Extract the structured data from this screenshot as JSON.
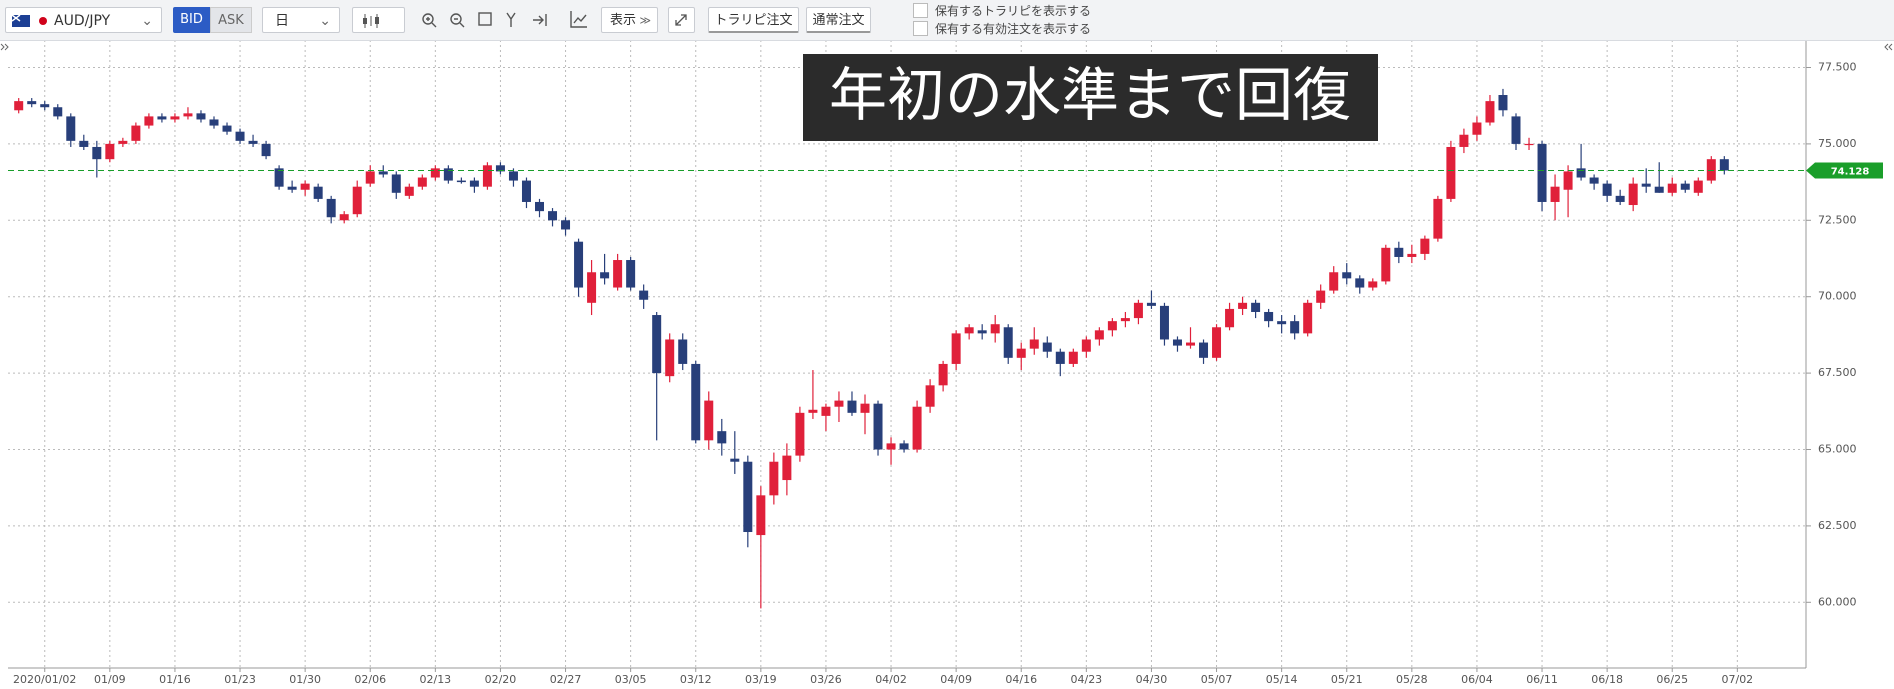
{
  "toolbar": {
    "symbol": "AUD/JPY",
    "bid": "BID",
    "ask": "ASK",
    "period": "日",
    "display": "表示",
    "trap_repeat_order": "トラリピ注文",
    "normal_order": "通常注文",
    "checkboxes": [
      "保有するトラリピを表示する",
      "保有する有効注文を表示する"
    ]
  },
  "chart_data": {
    "type": "candlestick",
    "annotation": "年初の水準まで回復",
    "categories": [
      null,
      null,
      "2020/01/02",
      null,
      null,
      null,
      null,
      "01/09",
      null,
      null,
      null,
      null,
      "01/16",
      null,
      null,
      null,
      null,
      "01/23",
      null,
      null,
      null,
      null,
      "01/30",
      null,
      null,
      null,
      null,
      "02/06",
      null,
      null,
      null,
      null,
      "02/13",
      null,
      null,
      null,
      null,
      "02/20",
      null,
      null,
      null,
      null,
      "02/27",
      null,
      null,
      null,
      null,
      "03/05",
      null,
      null,
      null,
      null,
      "03/12",
      null,
      null,
      null,
      null,
      "03/19",
      null,
      null,
      null,
      null,
      "03/26",
      null,
      null,
      null,
      null,
      "04/02",
      null,
      null,
      null,
      null,
      "04/09",
      null,
      null,
      null,
      null,
      "04/16",
      null,
      null,
      null,
      null,
      "04/23",
      null,
      null,
      null,
      null,
      "04/30",
      null,
      null,
      null,
      null,
      "05/07",
      null,
      null,
      null,
      null,
      "05/14",
      null,
      null,
      null,
      null,
      "05/21",
      null,
      null,
      null,
      null,
      "05/28",
      null,
      null,
      null,
      null,
      "06/04",
      null,
      null,
      null,
      null,
      "06/11",
      null,
      null,
      null,
      null,
      "06/18",
      null,
      null,
      null,
      null,
      "06/25",
      null,
      null,
      null,
      null,
      "07/02"
    ],
    "open": [
      76.1,
      76.4,
      76.3,
      76.2,
      75.9,
      75.1,
      74.9,
      74.5,
      75.0,
      75.1,
      75.6,
      75.9,
      75.8,
      75.9,
      76.0,
      75.8,
      75.6,
      75.4,
      75.1,
      75.0,
      74.2,
      73.6,
      73.5,
      73.6,
      73.2,
      72.5,
      72.7,
      73.7,
      74.1,
      74.0,
      73.3,
      73.6,
      73.9,
      74.2,
      73.8,
      73.8,
      73.6,
      74.3,
      74.1,
      73.8,
      73.1,
      72.8,
      72.5,
      71.8,
      69.8,
      70.8,
      70.3,
      71.2,
      70.2,
      69.4,
      67.4,
      68.6,
      67.8,
      65.3,
      65.6,
      64.7,
      64.6,
      62.2,
      63.5,
      64.0,
      64.8,
      66.2,
      66.1,
      66.4,
      66.6,
      66.2,
      66.5,
      65.0,
      65.2,
      65.0,
      66.4,
      67.1,
      67.8,
      68.8,
      68.9,
      68.8,
      69.0,
      68.0,
      68.3,
      68.5,
      68.2,
      67.8,
      68.2,
      68.6,
      68.9,
      69.2,
      69.3,
      69.8,
      69.7,
      68.6,
      68.4,
      68.5,
      68.0,
      69.0,
      69.6,
      69.8,
      69.5,
      69.2,
      69.2,
      68.8,
      69.8,
      70.2,
      70.8,
      70.6,
      70.3,
      70.5,
      71.6,
      71.3,
      71.4,
      71.9,
      73.2,
      74.9,
      75.3,
      75.7,
      76.6,
      75.9,
      75.0,
      75.0,
      73.1,
      73.5,
      74.2,
      73.9,
      73.7,
      73.3,
      73.0,
      73.7,
      73.6,
      73.4,
      73.7,
      73.4,
      73.8,
      74.5,
      null
    ],
    "high": [
      76.5,
      76.5,
      76.4,
      76.3,
      76.0,
      75.3,
      75.1,
      75.1,
      75.2,
      75.7,
      76.0,
      76.0,
      76.0,
      76.2,
      76.1,
      75.9,
      75.7,
      75.5,
      75.3,
      75.1,
      74.3,
      73.8,
      73.8,
      73.7,
      73.3,
      72.8,
      73.8,
      74.3,
      74.3,
      74.1,
      73.7,
      74.0,
      74.3,
      74.3,
      73.9,
      73.9,
      74.4,
      74.4,
      74.2,
      73.9,
      73.2,
      72.9,
      72.6,
      71.9,
      71.2,
      71.4,
      71.4,
      71.3,
      70.4,
      69.5,
      68.8,
      68.8,
      67.9,
      66.9,
      66.0,
      65.6,
      64.8,
      63.8,
      64.9,
      65.2,
      66.4,
      67.6,
      66.5,
      66.9,
      66.9,
      66.8,
      66.6,
      65.4,
      65.3,
      66.6,
      67.3,
      67.9,
      68.9,
      69.1,
      69.1,
      69.4,
      69.1,
      68.5,
      69.0,
      68.7,
      68.3,
      68.3,
      68.7,
      69.0,
      69.3,
      69.5,
      69.9,
      70.2,
      69.8,
      68.7,
      69.0,
      68.6,
      69.1,
      69.8,
      70.0,
      69.9,
      69.6,
      69.4,
      69.4,
      69.9,
      70.4,
      71.0,
      71.1,
      70.7,
      70.6,
      71.7,
      71.8,
      71.7,
      72.0,
      73.3,
      75.1,
      75.5,
      75.9,
      76.6,
      76.8,
      76.0,
      75.2,
      75.1,
      74.0,
      74.3,
      75.0,
      74.0,
      73.8,
      73.5,
      73.9,
      74.2,
      74.4,
      73.9,
      73.8,
      73.9,
      74.6,
      74.6,
      null
    ],
    "low": [
      76.0,
      76.2,
      76.1,
      75.8,
      74.9,
      74.8,
      73.9,
      74.4,
      74.9,
      75.0,
      75.5,
      75.7,
      75.7,
      75.8,
      75.7,
      75.5,
      75.3,
      75.0,
      74.9,
      74.5,
      73.5,
      73.4,
      73.3,
      73.1,
      72.4,
      72.4,
      72.6,
      73.6,
      73.9,
      73.2,
      73.2,
      73.5,
      73.8,
      73.7,
      73.7,
      73.4,
      73.5,
      74.0,
      73.6,
      72.9,
      72.6,
      72.3,
      72.0,
      70.0,
      69.4,
      70.4,
      70.2,
      70.2,
      69.6,
      65.3,
      67.2,
      67.6,
      65.2,
      65.0,
      64.8,
      64.2,
      61.8,
      59.8,
      63.2,
      63.5,
      64.6,
      66.0,
      65.6,
      65.9,
      66.1,
      65.5,
      64.8,
      64.5,
      64.9,
      64.9,
      66.2,
      66.9,
      67.6,
      68.6,
      68.6,
      68.5,
      67.8,
      67.6,
      68.1,
      68.0,
      67.4,
      67.7,
      68.0,
      68.4,
      68.7,
      69.0,
      69.1,
      69.6,
      68.4,
      68.2,
      68.3,
      67.8,
      67.9,
      68.9,
      69.4,
      69.3,
      69.0,
      68.8,
      68.6,
      68.7,
      69.6,
      70.1,
      70.4,
      70.1,
      70.2,
      70.4,
      71.1,
      71.1,
      71.2,
      71.8,
      73.1,
      74.7,
      75.1,
      75.6,
      75.9,
      74.8,
      74.8,
      72.8,
      72.5,
      72.6,
      73.8,
      73.5,
      73.1,
      73.0,
      72.8,
      73.4,
      73.4,
      73.3,
      73.4,
      73.3,
      73.7,
      74.0,
      null
    ],
    "close": [
      76.4,
      76.3,
      76.2,
      75.9,
      75.1,
      74.9,
      74.5,
      75.0,
      75.1,
      75.6,
      75.9,
      75.8,
      75.9,
      76.0,
      75.8,
      75.6,
      75.4,
      75.1,
      75.0,
      74.6,
      73.6,
      73.5,
      73.7,
      73.2,
      72.6,
      72.7,
      73.6,
      74.1,
      74.0,
      73.4,
      73.6,
      73.9,
      74.2,
      73.8,
      73.75,
      73.6,
      74.3,
      74.1,
      73.8,
      73.1,
      72.8,
      72.5,
      72.2,
      70.3,
      70.8,
      70.6,
      71.2,
      70.3,
      69.9,
      67.5,
      68.6,
      67.8,
      65.3,
      66.6,
      65.2,
      64.6,
      62.3,
      63.5,
      64.6,
      64.8,
      66.2,
      66.3,
      66.4,
      66.6,
      66.2,
      66.5,
      65.0,
      65.2,
      65.0,
      66.4,
      67.1,
      67.8,
      68.8,
      69.0,
      68.8,
      69.1,
      68.0,
      68.3,
      68.6,
      68.2,
      67.8,
      68.2,
      68.6,
      68.9,
      69.2,
      69.3,
      69.8,
      69.7,
      68.6,
      68.4,
      68.5,
      68.0,
      69.0,
      69.6,
      69.8,
      69.5,
      69.2,
      69.1,
      68.8,
      69.8,
      70.2,
      70.8,
      70.6,
      70.3,
      70.5,
      71.6,
      71.3,
      71.4,
      71.9,
      73.2,
      74.9,
      75.3,
      75.7,
      76.4,
      76.1,
      75.0,
      75.0,
      73.1,
      73.6,
      74.1,
      73.9,
      73.7,
      73.3,
      73.1,
      73.7,
      73.6,
      73.4,
      73.7,
      73.5,
      73.8,
      74.5,
      74.13,
      null
    ],
    "up_color": "#e0203a",
    "down_color": "#283f7a",
    "current_price": 74.128,
    "current_color": "#1a9e2a",
    "ylim": [
      57.85,
      78.4
    ],
    "yticks": [
      {
        "value": 60,
        "label": "60.000"
      },
      {
        "value": 62.5,
        "label": "62.500"
      },
      {
        "value": 65,
        "label": "65.000"
      },
      {
        "value": 67.5,
        "label": "67.500"
      },
      {
        "value": 70,
        "label": "70.000"
      },
      {
        "value": 72.5,
        "label": "72.500"
      },
      {
        "value": 75,
        "label": "75.000"
      },
      {
        "value": 77.5,
        "label": "77.500"
      }
    ],
    "grid": true
  }
}
